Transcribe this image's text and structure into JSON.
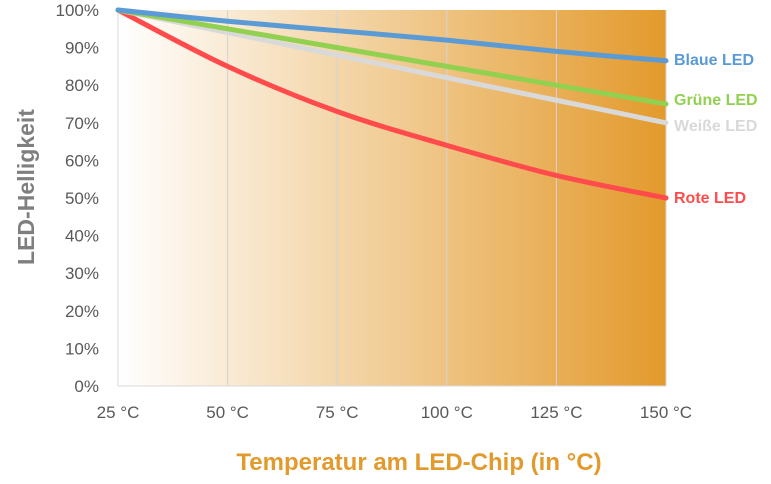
{
  "chart_data": {
    "type": "line",
    "xlabel": "Temperatur am LED-Chip (in °C)",
    "ylabel": "LED-Helligkeit",
    "xlim": [
      25,
      150
    ],
    "ylim": [
      0,
      100
    ],
    "x_ticks": [
      "25 °C",
      "50 °C",
      "75 °C",
      "100 °C",
      "125 °C",
      "150 °C"
    ],
    "y_ticks": [
      "0%",
      "10%",
      "20%",
      "30%",
      "40%",
      "50%",
      "60%",
      "70%",
      "80%",
      "90%",
      "100%"
    ],
    "grid": "vertical",
    "background": "gradient light to orange",
    "colors": {
      "gradient_start": "#ffffff",
      "gradient_end": "#e39a2c",
      "xlabel": "#e39a2c",
      "ylabel": "#7f7f7f"
    },
    "series": [
      {
        "name": "Blaue LED",
        "color": "#5b9bd5",
        "x": [
          25,
          50,
          75,
          100,
          125,
          150
        ],
        "y": [
          100,
          97,
          94.5,
          92,
          89,
          86.5
        ]
      },
      {
        "name": "Grüne LED",
        "color": "#92d050",
        "x": [
          25,
          50,
          75,
          100,
          125,
          150
        ],
        "y": [
          100,
          95,
          90,
          85,
          80,
          75
        ]
      },
      {
        "name": "Weiße LED",
        "color": "#d9d9d9",
        "x": [
          25,
          50,
          75,
          100,
          125,
          150
        ],
        "y": [
          100,
          94,
          88,
          82,
          76,
          70
        ]
      },
      {
        "name": "Rote LED",
        "color": "#ff4b4b",
        "x": [
          25,
          50,
          75,
          100,
          125,
          150
        ],
        "y": [
          100,
          85,
          73,
          64,
          56,
          50
        ]
      }
    ]
  }
}
